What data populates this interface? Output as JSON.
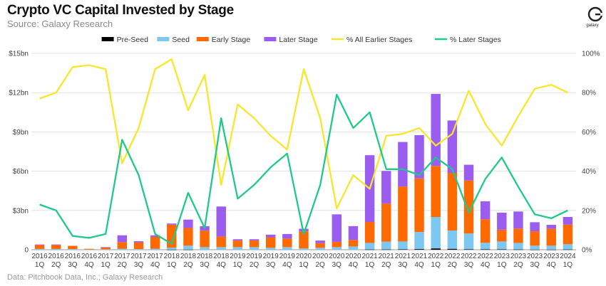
{
  "header": {
    "title": "Crypto VC Capital Invested by Stage",
    "subtitle": "Source: Galaxy Research",
    "footer": "Data: Pitchbook Data, Inc.; Galaxy Research",
    "logo_text": "galaxy"
  },
  "colors": {
    "pre_seed": "#000000",
    "seed": "#7cc8f0",
    "early": "#ff6a00",
    "later": "#9b5cf0",
    "pct_earlier": "#f7e62a",
    "pct_later": "#1ec98a"
  },
  "chart_data": {
    "type": "bar",
    "stacked": true,
    "categories": [
      "2016 1Q",
      "2016 2Q",
      "2016 3Q",
      "2016 4Q",
      "2017 1Q",
      "2017 2Q",
      "2017 3Q",
      "2017 4Q",
      "2018 1Q",
      "2018 2Q",
      "2018 3Q",
      "2018 4Q",
      "2019 1Q",
      "2019 2Q",
      "2019 3Q",
      "2019 4Q",
      "2020 1Q",
      "2020 2Q",
      "2020 3Q",
      "2020 4Q",
      "2021 1Q",
      "2021 2Q",
      "2021 3Q",
      "2021 4Q",
      "2022 1Q",
      "2022 2Q",
      "2022 3Q",
      "2022 4Q",
      "2023 1Q",
      "2023 2Q",
      "2023 3Q",
      "2023 4Q",
      "2024 1Q"
    ],
    "category_lines": [
      [
        "2016",
        "1Q"
      ],
      [
        "2016",
        "2Q"
      ],
      [
        "2016",
        "3Q"
      ],
      [
        "2016",
        "4Q"
      ],
      [
        "2017",
        "1Q"
      ],
      [
        "2017",
        "2Q"
      ],
      [
        "2017",
        "3Q"
      ],
      [
        "2017",
        "4Q"
      ],
      [
        "2018",
        "1Q"
      ],
      [
        "2018",
        "2Q"
      ],
      [
        "2018",
        "3Q"
      ],
      [
        "2018",
        "4Q"
      ],
      [
        "2019",
        "1Q"
      ],
      [
        "2019",
        "2Q"
      ],
      [
        "2019",
        "3Q"
      ],
      [
        "2019",
        "4Q"
      ],
      [
        "2020",
        "1Q"
      ],
      [
        "2020",
        "2Q"
      ],
      [
        "2020",
        "3Q"
      ],
      [
        "2020",
        "4Q"
      ],
      [
        "2021",
        "1Q"
      ],
      [
        "2021",
        "2Q"
      ],
      [
        "2021",
        "3Q"
      ],
      [
        "2021",
        "4Q"
      ],
      [
        "2022",
        "1Q"
      ],
      [
        "2022",
        "2Q"
      ],
      [
        "2022",
        "3Q"
      ],
      [
        "2022",
        "4Q"
      ],
      [
        "2023",
        "1Q"
      ],
      [
        "2023",
        "2Q"
      ],
      [
        "2023",
        "3Q"
      ],
      [
        "2023",
        "4Q"
      ],
      [
        "2024",
        "1Q"
      ]
    ],
    "bar_series": [
      {
        "name": "Pre-Seed",
        "color_key": "pre_seed",
        "values": [
          0,
          0,
          0,
          0,
          0,
          0,
          0,
          0,
          0.01,
          0.01,
          0,
          0,
          0,
          0,
          0,
          0,
          0,
          0,
          0,
          0,
          0.02,
          0.02,
          0.03,
          0.05,
          0.1,
          0.07,
          0.04,
          0.03,
          0.03,
          0.02,
          0.01,
          0.01,
          0.02
        ]
      },
      {
        "name": "Seed",
        "color_key": "seed",
        "values": [
          0.06,
          0.06,
          0.05,
          0.02,
          0.03,
          0.08,
          0.05,
          0.08,
          0.15,
          0.3,
          0.2,
          0.2,
          0.2,
          0.2,
          0.15,
          0.2,
          0.1,
          0.15,
          0.2,
          0.25,
          0.5,
          0.6,
          0.6,
          1.3,
          2.4,
          1.4,
          1.2,
          0.5,
          0.6,
          0.5,
          0.3,
          0.3,
          0.4
        ]
      },
      {
        "name": "Early Stage",
        "color_key": "early",
        "values": [
          0.3,
          0.3,
          0.25,
          0.05,
          0.15,
          0.5,
          0.5,
          0.9,
          1.75,
          1.35,
          1.25,
          0.8,
          0.5,
          0.5,
          0.8,
          0.65,
          1.3,
          0.35,
          0.4,
          0.5,
          1.6,
          2.9,
          4.2,
          4.1,
          3.9,
          4.4,
          4.05,
          1.8,
          0.9,
          1.1,
          1.1,
          1.3,
          1.5
        ]
      },
      {
        "name": "Later Stage",
        "color_key": "later",
        "values": [
          0.04,
          0.04,
          0.0,
          0.0,
          0.02,
          0.52,
          0.1,
          0.12,
          0.09,
          0.64,
          0.35,
          2.3,
          0.1,
          0.1,
          0.2,
          0.35,
          0.2,
          0.2,
          2.1,
          1.05,
          5.1,
          2.5,
          3.4,
          3.3,
          5.5,
          4.0,
          1.2,
          1.37,
          1.3,
          1.3,
          0.69,
          0.29,
          0.58
        ]
      }
    ],
    "line_series": [
      {
        "name": "% All Earlier Stages",
        "color_key": "pct_earlier",
        "values": [
          77,
          80,
          93,
          94,
          92,
          44,
          62,
          92,
          97,
          71,
          89,
          33,
          74,
          67,
          58,
          51,
          92,
          67,
          21,
          38,
          31,
          58,
          59,
          62,
          53,
          59,
          81,
          64,
          53,
          68,
          82,
          84,
          80
        ]
      },
      {
        "name": "% Later Stages",
        "color_key": "pct_later",
        "values": [
          23,
          20,
          7,
          6,
          8,
          56,
          38,
          8,
          3,
          29,
          11,
          67,
          26,
          33,
          42,
          49,
          8,
          33,
          79,
          62,
          70,
          41,
          41,
          38,
          47,
          41,
          19,
          36,
          47,
          32,
          18,
          16,
          20
        ]
      }
    ],
    "legend_order": [
      "Pre-Seed",
      "Seed",
      "Early Stage",
      "Later Stage",
      "% All Earlier Stages",
      "% Later Stages"
    ],
    "legend_position": "top-center",
    "y_left": {
      "min": 0,
      "max": 15,
      "ticks": [
        0,
        3,
        6,
        9,
        12,
        15
      ],
      "tick_labels": [
        "0",
        "$3bn",
        "$6bn",
        "$9bn",
        "$12bn",
        "$15bn"
      ]
    },
    "y_right": {
      "min": 0,
      "max": 100,
      "ticks": [
        0,
        20,
        40,
        60,
        80,
        100
      ],
      "tick_labels": [
        "0%",
        "20%",
        "40%",
        "60%",
        "80%",
        "100%"
      ]
    },
    "grid": true
  }
}
